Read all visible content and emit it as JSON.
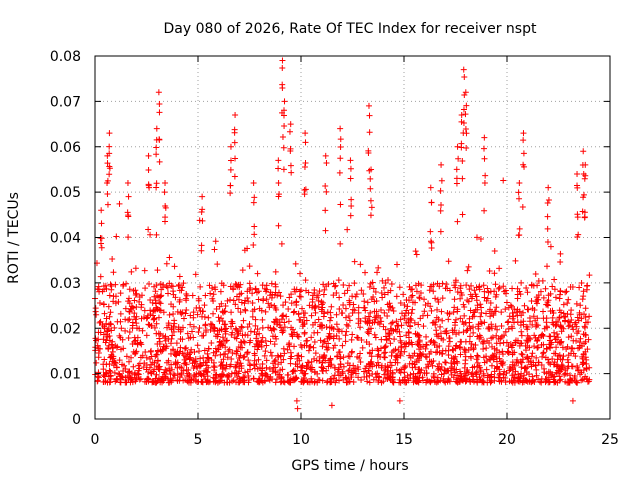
{
  "chart_data": {
    "type": "scatter",
    "title": "Day 080 of 2026, Rate Of TEC Index for receiver nspt",
    "xlabel": "GPS time / hours",
    "ylabel": "ROTI / TECUs",
    "xlim": [
      0,
      25
    ],
    "ylim": [
      0,
      0.08
    ],
    "x_ticks": [
      "0",
      "5",
      "10",
      "15",
      "20",
      "25"
    ],
    "y_ticks": [
      "0",
      "0.01",
      "0.02",
      "0.03",
      "0.04",
      "0.05",
      "0.06",
      "0.07",
      "0.08"
    ],
    "x_tick_values": [
      0,
      5,
      10,
      15,
      20,
      25
    ],
    "y_tick_values": [
      0,
      0.01,
      0.02,
      0.03,
      0.04,
      0.05,
      0.06,
      0.07,
      0.08
    ],
    "grid": true,
    "marker": "+",
    "color": "#ff0000",
    "series": [
      {
        "name": "ROTI",
        "x_range": [
          0,
          24
        ],
        "typical_band": [
          0.008,
          0.03
        ],
        "sample_peaks": [
          {
            "x": 0.3,
            "y": 0.046
          },
          {
            "x": 0.6,
            "y": 0.058
          },
          {
            "x": 0.7,
            "y": 0.063
          },
          {
            "x": 1.6,
            "y": 0.052
          },
          {
            "x": 2.6,
            "y": 0.058
          },
          {
            "x": 3.1,
            "y": 0.072
          },
          {
            "x": 3.0,
            "y": 0.064
          },
          {
            "x": 3.4,
            "y": 0.052
          },
          {
            "x": 5.2,
            "y": 0.049
          },
          {
            "x": 6.6,
            "y": 0.06
          },
          {
            "x": 6.8,
            "y": 0.067
          },
          {
            "x": 7.7,
            "y": 0.052
          },
          {
            "x": 9.1,
            "y": 0.079
          },
          {
            "x": 9.2,
            "y": 0.07
          },
          {
            "x": 9.5,
            "y": 0.065
          },
          {
            "x": 8.9,
            "y": 0.057
          },
          {
            "x": 10.2,
            "y": 0.063
          },
          {
            "x": 11.2,
            "y": 0.058
          },
          {
            "x": 11.9,
            "y": 0.064
          },
          {
            "x": 12.4,
            "y": 0.057
          },
          {
            "x": 13.3,
            "y": 0.069
          },
          {
            "x": 13.4,
            "y": 0.055
          },
          {
            "x": 16.3,
            "y": 0.051
          },
          {
            "x": 16.8,
            "y": 0.056
          },
          {
            "x": 17.6,
            "y": 0.06
          },
          {
            "x": 17.9,
            "y": 0.077
          },
          {
            "x": 17.8,
            "y": 0.067
          },
          {
            "x": 18.0,
            "y": 0.072
          },
          {
            "x": 18.9,
            "y": 0.062
          },
          {
            "x": 20.8,
            "y": 0.063
          },
          {
            "x": 20.6,
            "y": 0.052
          },
          {
            "x": 22.0,
            "y": 0.051
          },
          {
            "x": 23.4,
            "y": 0.054
          },
          {
            "x": 23.7,
            "y": 0.059
          },
          {
            "x": 23.8,
            "y": 0.056
          },
          {
            "x": 9.8,
            "y": 0.004
          },
          {
            "x": 11.5,
            "y": 0.003
          },
          {
            "x": 14.8,
            "y": 0.004
          },
          {
            "x": 23.2,
            "y": 0.004
          }
        ]
      }
    ]
  }
}
